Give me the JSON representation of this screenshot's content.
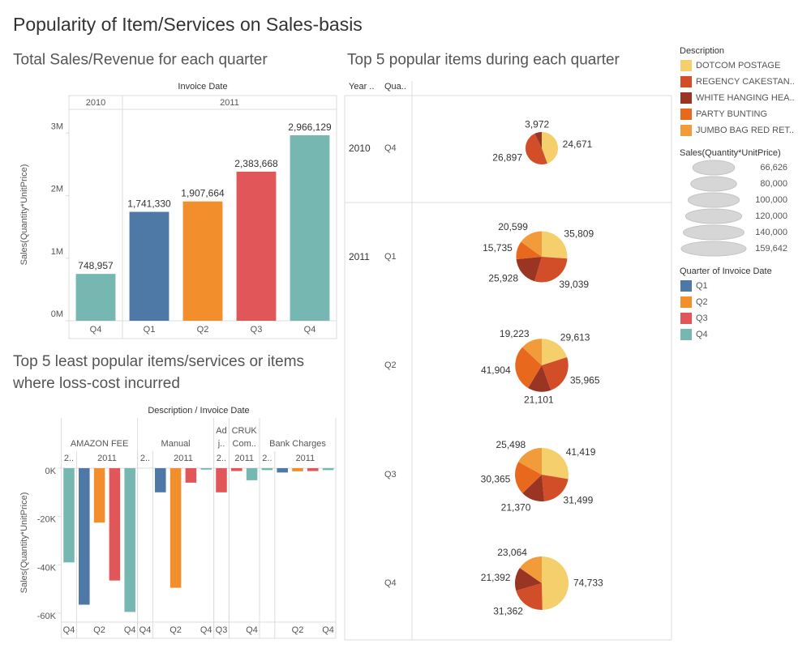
{
  "title": "Popularity of Item/Services on Sales-basis",
  "chart_data": [
    {
      "type": "bar",
      "title": "Total Sales/Revenue for each quarter",
      "x_header": "Invoice Date",
      "x_groups": [
        {
          "label": "2010",
          "size": 1
        },
        {
          "label": "2011",
          "size": 4
        }
      ],
      "categories": [
        "Q4",
        "Q1",
        "Q2",
        "Q3",
        "Q4"
      ],
      "values": [
        748957,
        1741330,
        1907664,
        2383668,
        2966129
      ],
      "value_labels": [
        "748,957",
        "1,741,330",
        "1,907,664",
        "2,383,668",
        "2,966,129"
      ],
      "colors": [
        "#76b7b2",
        "#4e79a7",
        "#f28e2b",
        "#e15759",
        "#76b7b2"
      ],
      "ylabel": "Sales(Quantity*UnitPrice)",
      "ylim": [
        0,
        3380000
      ],
      "yticks": [
        {
          "value": 0,
          "label": "0M"
        },
        {
          "value": 1000000,
          "label": "1M"
        },
        {
          "value": 2000000,
          "label": "2M"
        },
        {
          "value": 3000000,
          "label": "3M"
        }
      ]
    },
    {
      "type": "bar",
      "title": "Top 5 least popular items/services or items where loss-cost incurred",
      "x_header": "Description / Invoice Date",
      "x_groups": [
        {
          "label": "AMAZON FEE",
          "size": 5
        },
        {
          "label": "Manual",
          "size": 5
        },
        {
          "label": "Ad j..",
          "size": 1
        },
        {
          "label": "CRUK Com..",
          "size": 2
        },
        {
          "label": "Bank Charges",
          "size": 5
        }
      ],
      "x_subgroups": [
        {
          "label": "2..",
          "size": 1
        },
        {
          "label": "2011",
          "size": 4
        },
        {
          "label": "2..",
          "size": 1
        },
        {
          "label": "2011",
          "size": 4
        },
        {
          "label": "2..",
          "size": 1
        },
        {
          "label": "2011",
          "size": 2
        },
        {
          "label": "2..",
          "size": 1
        },
        {
          "label": "2011",
          "size": 4
        }
      ],
      "categories": [
        "Q4",
        null,
        "Q2",
        null,
        "Q4",
        "Q4",
        null,
        "Q2",
        null,
        "Q4",
        "Q3",
        null,
        "Q4",
        null,
        null,
        "Q2",
        null,
        "Q4"
      ],
      "values": [
        -39000,
        -56500,
        -22500,
        -46500,
        -59500,
        null,
        -10000,
        -49500,
        -6000,
        -600,
        -10000,
        -1200,
        -5000,
        -800,
        -1800,
        -1300,
        -1200,
        -800
      ],
      "colors": [
        "#76b7b2",
        "#4e79a7",
        "#f28e2b",
        "#e15759",
        "#76b7b2",
        "#76b7b2",
        "#4e79a7",
        "#f28e2b",
        "#e15759",
        "#76b7b2",
        "#e15759",
        "#e15759",
        "#76b7b2",
        "#76b7b2",
        "#4e79a7",
        "#f28e2b",
        "#e15759",
        "#76b7b2"
      ],
      "ylabel": "Sales(Quantity*UnitPrice)",
      "ylim": [
        -63700,
        1000
      ],
      "yticks": [
        {
          "value": 0,
          "label": "0K"
        },
        {
          "value": -20000,
          "label": "-20K"
        },
        {
          "value": -40000,
          "label": "-40K"
        },
        {
          "value": -60000,
          "label": "-60K"
        }
      ]
    },
    {
      "type": "pie",
      "title": "Top 5 popular items during each quarter",
      "row_headers": [
        "Year ..",
        "Qua.."
      ],
      "legend_title": "Description",
      "series": [
        {
          "name": "DOTCOM POSTAGE",
          "color": "#f4cf6b"
        },
        {
          "name": "REGENCY CAKESTAN..",
          "color": "#d24e28"
        },
        {
          "name": "WHITE HANGING HEA..",
          "color": "#9a3524"
        },
        {
          "name": "PARTY BUNTING",
          "color": "#e8691e"
        },
        {
          "name": "JUMBO BAG RED RET..",
          "color": "#f29b3b"
        }
      ],
      "rows": [
        {
          "year": "2010",
          "quarter": "Q4",
          "values": [
            24671,
            26897,
            3972,
            null,
            null
          ],
          "value_labels": [
            "24,671",
            "26,897",
            "3,972",
            null,
            null
          ]
        },
        {
          "year": "2011",
          "quarter": "Q1",
          "values": [
            35809,
            39039,
            25928,
            15735,
            20599
          ],
          "value_labels": [
            "35,809",
            "39,039",
            "25,928",
            "15,735",
            "20,599"
          ]
        },
        {
          "year": null,
          "quarter": "Q2",
          "values": [
            29613,
            35965,
            21101,
            41904,
            19223
          ],
          "value_labels": [
            "29,613",
            "35,965",
            "21,101",
            "41,904",
            "19,223"
          ]
        },
        {
          "year": null,
          "quarter": "Q3",
          "values": [
            41419,
            31499,
            21370,
            30365,
            25498
          ],
          "value_labels": [
            "41,419",
            "31,499",
            "21,370",
            "30,365",
            "25,498"
          ]
        },
        {
          "year": null,
          "quarter": "Q4",
          "values": [
            74733,
            31362,
            21392,
            null,
            23064
          ],
          "value_labels": [
            "74,733",
            "31,362",
            "21,392",
            null,
            "23,064"
          ]
        }
      ],
      "size_legend": {
        "title": "Sales(Quantity*UnitPrice)",
        "ticks": [
          {
            "value": 66626,
            "label": "66,626"
          },
          {
            "value": 80000,
            "label": "80,000"
          },
          {
            "value": 100000,
            "label": "100,000"
          },
          {
            "value": 120000,
            "label": "120,000"
          },
          {
            "value": 140000,
            "label": "140,000"
          },
          {
            "value": 159642,
            "label": "159,642"
          }
        ]
      }
    }
  ],
  "quarter_legend": {
    "title": "Quarter of Invoice Date",
    "names": [
      "Q1",
      "Q2",
      "Q3",
      "Q4"
    ],
    "colors": [
      "#4e79a7",
      "#f28e2b",
      "#e15759",
      "#76b7b2"
    ]
  }
}
